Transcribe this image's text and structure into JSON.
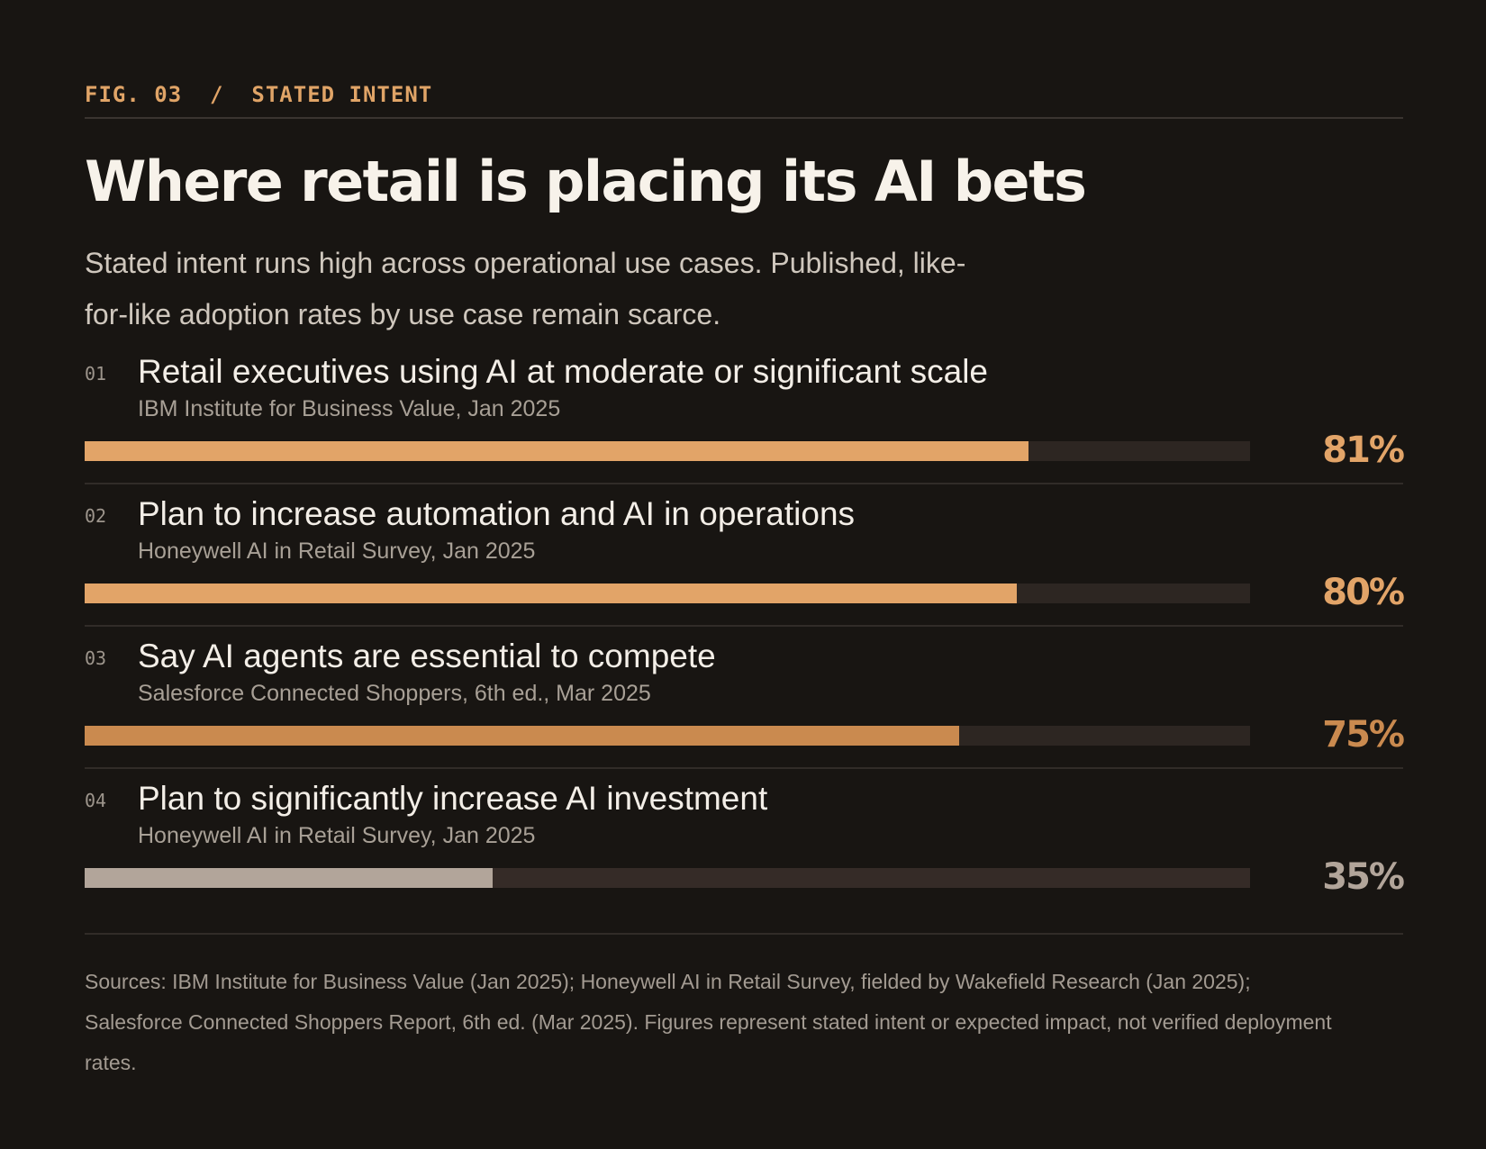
{
  "header": {
    "kicker": "FIG. 03  /  STATED INTENT",
    "title": "Where retail is placing its AI bets",
    "subtitle": "Stated intent runs high across operational use cases. Published, like-for-like adoption rates by use case remain scarce."
  },
  "colors": {
    "accent_light": "#e2a468",
    "accent_mid": "#ca8a4f",
    "neutral": "#b2a59a",
    "track": "#2d2622",
    "track_last": "#352b27"
  },
  "chart_data": {
    "type": "bar",
    "orientation": "horizontal",
    "xlim": [
      0,
      100
    ],
    "unit": "%",
    "rows": [
      {
        "num": "01",
        "label": "Retail executives using AI at moderate or significant scale",
        "source": "IBM Institute for Business Value, Jan 2025",
        "value": 81,
        "value_label": "81%",
        "color": "#e2a468"
      },
      {
        "num": "02",
        "label": "Plan to increase automation and AI in operations",
        "source": "Honeywell AI in Retail Survey, Jan 2025",
        "value": 80,
        "value_label": "80%",
        "color": "#e2a468"
      },
      {
        "num": "03",
        "label": "Say AI agents are essential to compete",
        "source": "Salesforce Connected Shoppers, 6th ed., Mar 2025",
        "value": 75,
        "value_label": "75%",
        "color": "#ca8a4f"
      },
      {
        "num": "04",
        "label": "Plan to significantly increase AI investment",
        "source": "Honeywell AI in Retail Survey, Jan 2025",
        "value": 35,
        "value_label": "35%",
        "color": "#b2a59a"
      }
    ]
  },
  "footer": {
    "sources": "Sources: IBM Institute for Business Value (Jan 2025); Honeywell AI in Retail Survey, fielded by Wakefield Research (Jan 2025); Salesforce Connected Shoppers Report, 6th ed. (Mar 2025). Figures represent stated intent or expected impact, not verified deployment rates."
  }
}
